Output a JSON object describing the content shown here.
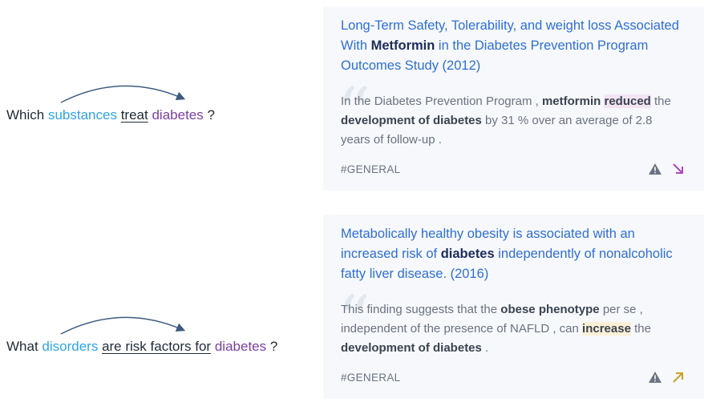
{
  "rows": [
    {
      "query": {
        "prefix": "Which ",
        "subject": "substances",
        "relation": "treat",
        "object": "diabetes",
        "suffix": " ?"
      },
      "card": {
        "title_pre": "Long-Term Safety, Tolerability, and weight loss Associated With ",
        "title_bold": "Metformin",
        "title_post": " in the Diabetes Prevention Program Outcomes Study (2012)",
        "snip_1": "In the Diabetes Prevention Program , ",
        "snip_b1": "metformin",
        "snip_2": " ",
        "snip_hl": "reduced",
        "snip_3": " the ",
        "snip_b2": "development of diabetes",
        "snip_4": " by 31 % over an average of 2.8 years of follow-up .",
        "tag": "#GENERAL",
        "direction": "decrease",
        "direction_color": "#b146c2"
      }
    },
    {
      "query": {
        "prefix": "What ",
        "subject": "disorders",
        "relation": "are risk factors for",
        "object": "diabetes",
        "suffix": " ?"
      },
      "card": {
        "title_pre": "Metabolically healthy obesity is associated with an increased risk of ",
        "title_bold": "diabetes",
        "title_post": " independently of nonalcoholic fatty liver disease. (2016)",
        "snip_1": "This finding suggests that the ",
        "snip_b1": "obese phenotype",
        "snip_2": " per se , independent of the presence of NAFLD , can ",
        "snip_hl": "increase",
        "snip_3": " the ",
        "snip_b2": "development of diabetes",
        "snip_4": " .",
        "tag": "#GENERAL",
        "direction": "increase",
        "direction_color": "#c9a227"
      }
    }
  ],
  "icons": {
    "warning": "warning-triangle-icon",
    "quote": "quote-icon",
    "arc": "relation-arc-icon"
  },
  "colors": {
    "subject": "#2fa4e7",
    "object": "#7b3fa2",
    "title": "#2f6fd4",
    "card_bg": "#f6f8fb"
  }
}
